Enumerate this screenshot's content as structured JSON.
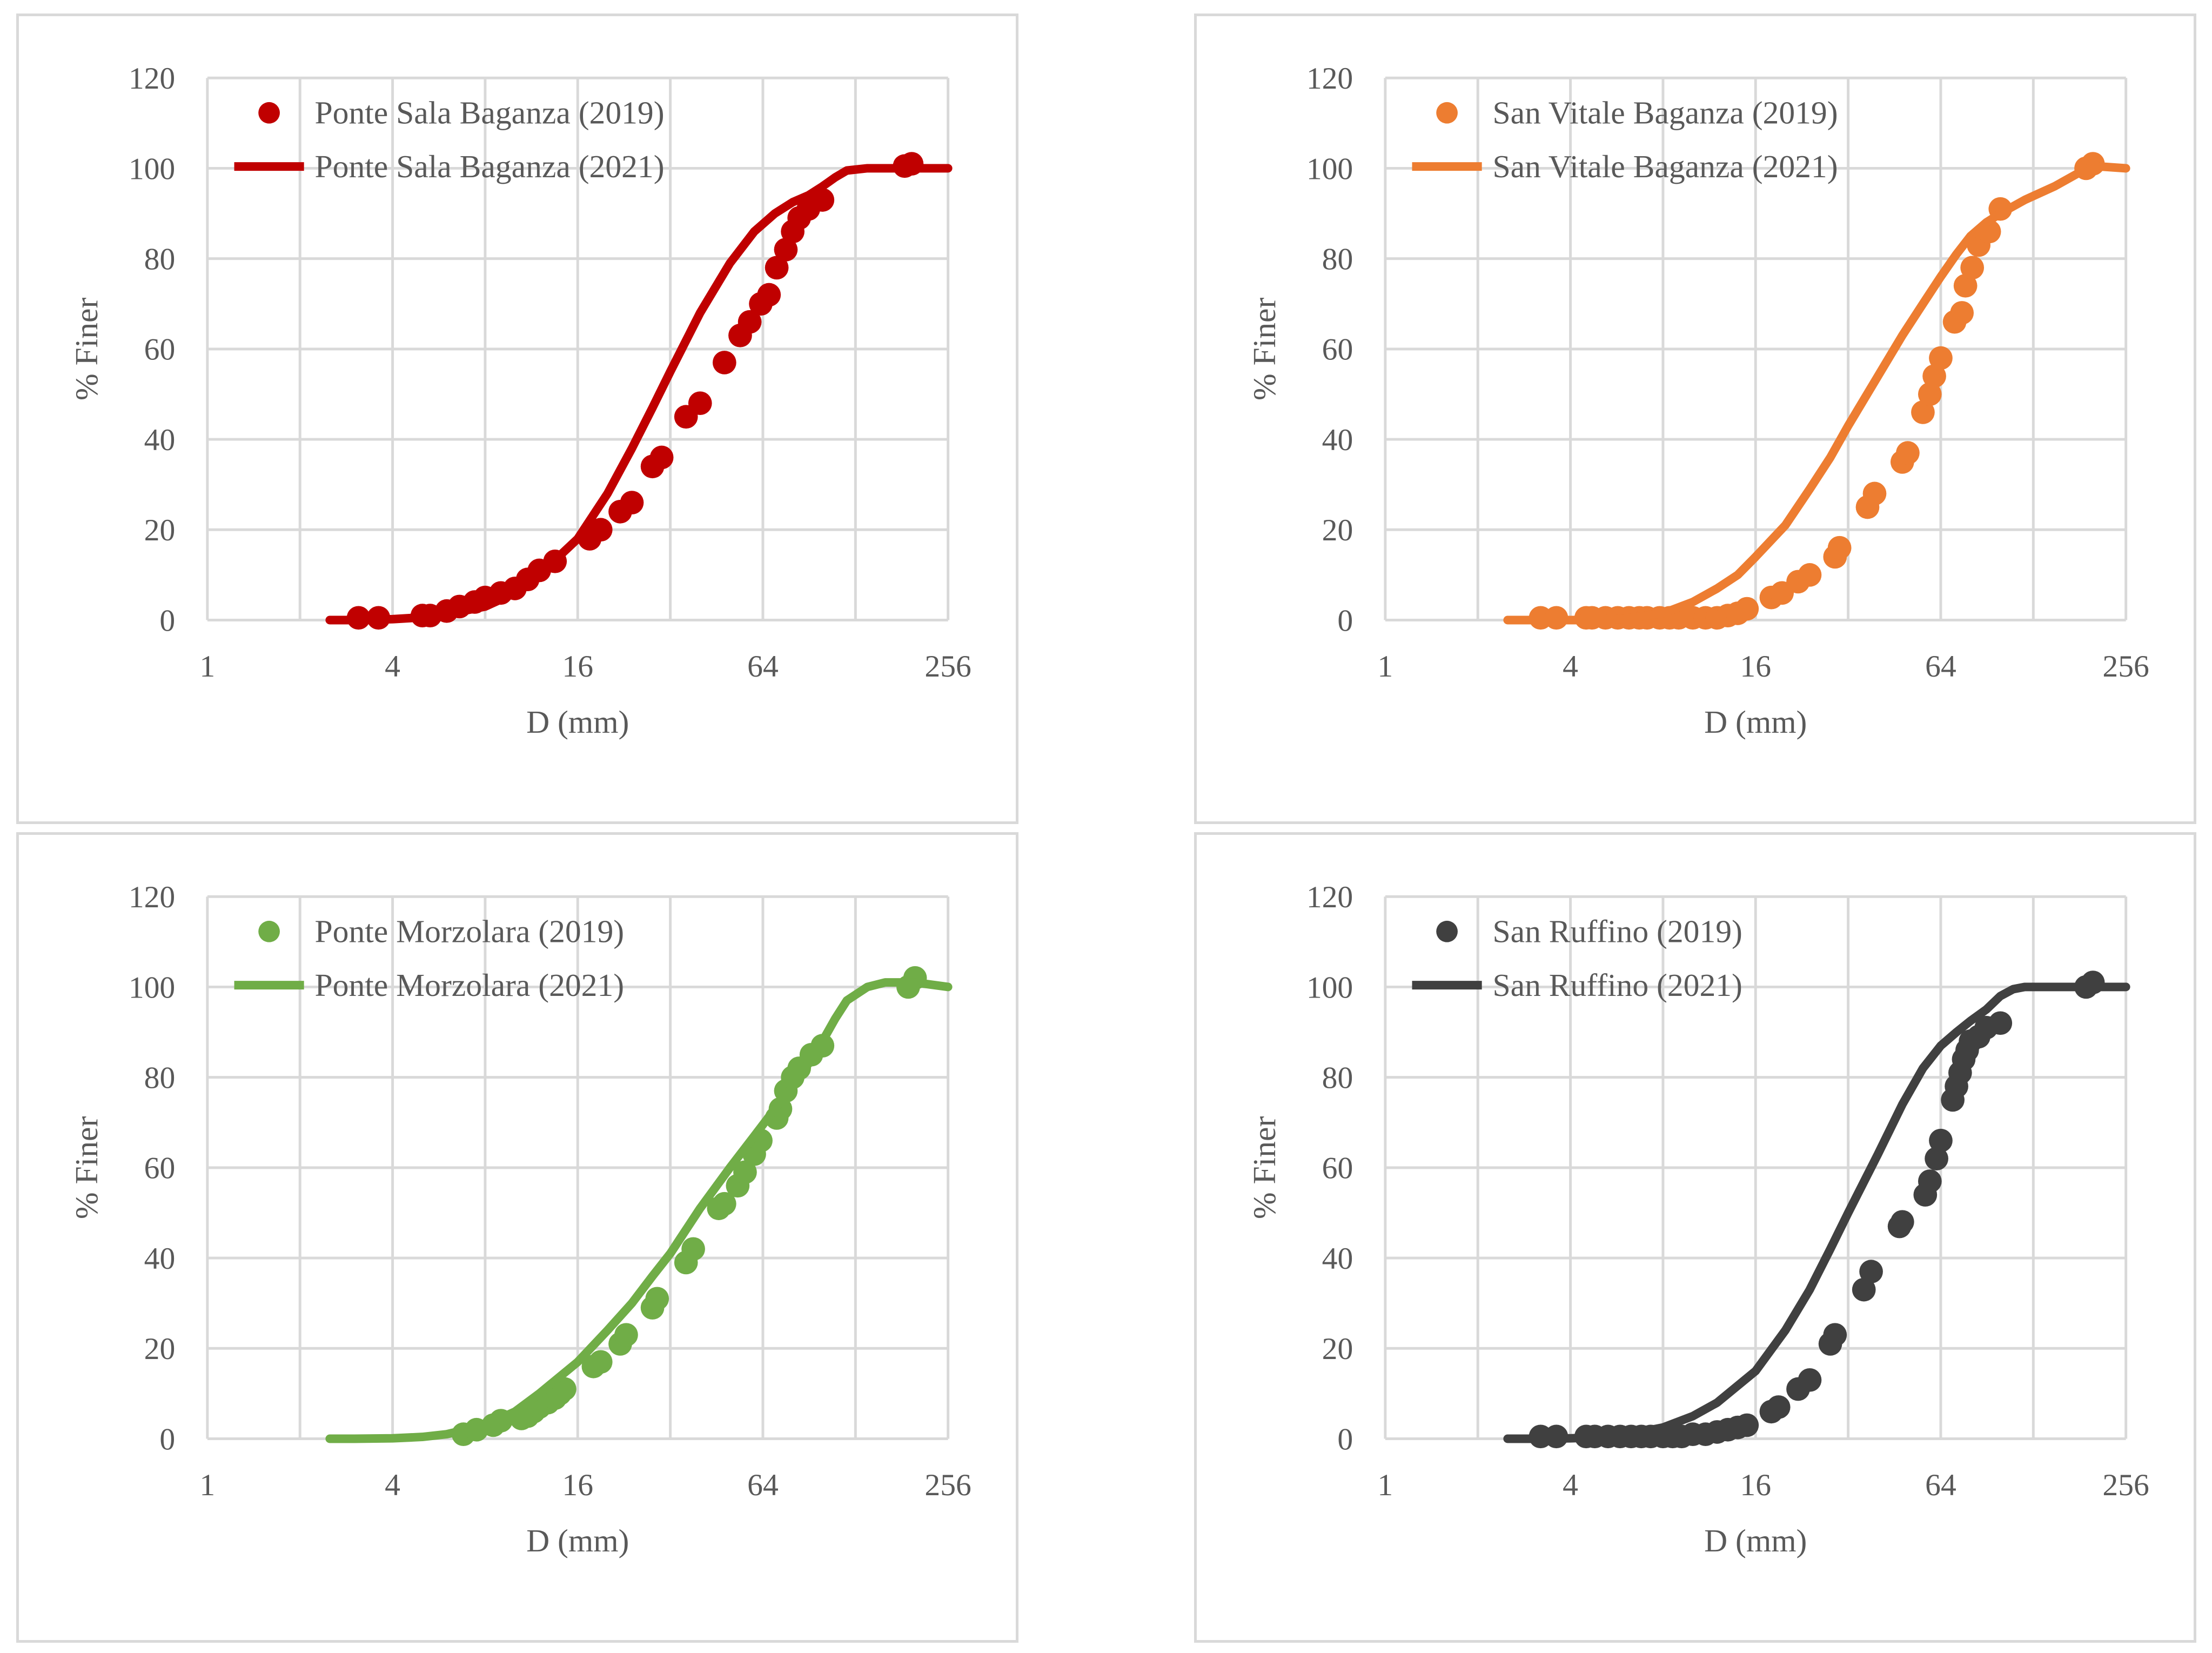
{
  "chart_data": [
    {
      "type": "scatter",
      "xscale": "log2",
      "xlabel": "D (mm)",
      "ylabel": "% Finer",
      "xticks": [
        1,
        4,
        16,
        64,
        256
      ],
      "yticks": [
        0,
        20,
        40,
        60,
        80,
        100,
        120
      ],
      "xlim": [
        1,
        256
      ],
      "ylim": [
        0,
        120
      ],
      "grid": true,
      "legend_position": "top-left",
      "color": "#c00000",
      "series": [
        {
          "name": "Ponte Sala Baganza (2019)",
          "kind": "points",
          "x": [
            3.1,
            3.6,
            5.0,
            5.3,
            6.0,
            6.6,
            7.4,
            8.0,
            9.0,
            10.0,
            11.0,
            12.0,
            13.5,
            17.5,
            19.0,
            22.0,
            24.0,
            28.0,
            30.0,
            36.0,
            40.0,
            48.0,
            54.0,
            58.0,
            63.0,
            67.0,
            71.0,
            76.0,
            80.0,
            84.0,
            90.0,
            100.0,
            185.0,
            195.0
          ],
          "y": [
            0.5,
            0.5,
            1.0,
            1.0,
            2.0,
            3.0,
            4.0,
            5.0,
            6.0,
            7.0,
            9.0,
            11.0,
            13.0,
            18.0,
            20.0,
            24.0,
            26.0,
            34.0,
            36.0,
            45.0,
            48.0,
            57.0,
            63.0,
            66.0,
            70.0,
            72.0,
            78.0,
            82.0,
            86.0,
            89.0,
            91.0,
            93.0,
            100.5,
            101.0
          ]
        },
        {
          "name": "Ponte Sala Baganza (2021)",
          "kind": "line",
          "x": [
            2.5,
            3,
            4,
            5,
            6,
            8,
            10,
            12,
            16,
            20,
            24,
            28,
            32,
            40,
            50,
            60,
            70,
            80,
            90,
            100,
            110,
            120,
            140,
            160,
            200,
            256
          ],
          "y": [
            0,
            0,
            0.2,
            0.6,
            1.3,
            3.0,
            6.0,
            10.0,
            18.0,
            28.0,
            38.0,
            47.0,
            55.0,
            68.0,
            79.0,
            86.0,
            90.0,
            92.5,
            94.0,
            96.0,
            98.0,
            99.5,
            100,
            100,
            100,
            100
          ]
        }
      ]
    },
    {
      "type": "scatter",
      "xscale": "log2",
      "xlabel": "D (mm)",
      "ylabel": "% Finer",
      "xticks": [
        1,
        4,
        16,
        64,
        256
      ],
      "yticks": [
        0,
        20,
        40,
        60,
        80,
        100,
        120
      ],
      "xlim": [
        1,
        256
      ],
      "ylim": [
        0,
        120
      ],
      "grid": true,
      "legend_position": "top-left",
      "color": "#ed7d31",
      "series": [
        {
          "name": "San Vitale Baganza (2019)",
          "kind": "points",
          "x": [
            3.2,
            3.6,
            4.5,
            4.7,
            5.2,
            5.7,
            6.2,
            6.7,
            7.1,
            7.8,
            8.4,
            9.0,
            10.0,
            11.0,
            12.0,
            13.0,
            14.0,
            15.0,
            18.0,
            19.5,
            22.0,
            24.0,
            29.0,
            30.0,
            37.0,
            39.0,
            48.0,
            50.0,
            56.0,
            59.0,
            61.0,
            64.0,
            71.0,
            75.0,
            77.0,
            81.0,
            85.0,
            92.0,
            100.0,
            190.0,
            200.0
          ],
          "y": [
            0.5,
            0.5,
            0.5,
            0.5,
            0.5,
            0.5,
            0.5,
            0.5,
            0.5,
            0.5,
            0.5,
            0.5,
            0.5,
            0.5,
            0.5,
            1.0,
            1.5,
            2.5,
            5.0,
            6.0,
            8.5,
            10.0,
            14.0,
            16.0,
            25.0,
            28.0,
            35.0,
            37.0,
            46.0,
            50.0,
            54.0,
            58.0,
            66.0,
            68.0,
            74.0,
            78.0,
            83.0,
            86.0,
            91.0,
            100.0,
            101.0
          ]
        },
        {
          "name": "San Vitale Baganza (2021)",
          "kind": "line",
          "x": [
            2.5,
            3,
            4,
            5,
            6,
            8,
            10,
            12,
            14,
            16,
            20,
            24,
            28,
            32,
            40,
            48,
            56,
            64,
            72,
            80,
            90,
            100,
            120,
            150,
            180,
            200,
            256
          ],
          "y": [
            0,
            0,
            0,
            0,
            0.3,
            1.5,
            4.0,
            7.0,
            10.0,
            14.0,
            21.0,
            29.0,
            36.0,
            43.0,
            54.0,
            63.0,
            70.0,
            76.0,
            81.0,
            85.0,
            88.0,
            90.0,
            93.0,
            96.0,
            99.0,
            100.5,
            100
          ]
        }
      ]
    },
    {
      "type": "scatter",
      "xscale": "log2",
      "xlabel": "D (mm)",
      "ylabel": "% Finer",
      "xticks": [
        1,
        4,
        16,
        64,
        256
      ],
      "yticks": [
        0,
        20,
        40,
        60,
        80,
        100,
        120
      ],
      "xlim": [
        1,
        256
      ],
      "ylim": [
        0,
        120
      ],
      "grid": true,
      "legend_position": "top-left",
      "color": "#70ad47",
      "series": [
        {
          "name": "Ponte Morzolara (2019)",
          "kind": "points",
          "x": [
            6.8,
            7.5,
            8.5,
            9.0,
            10.5,
            11.0,
            11.5,
            12.0,
            12.8,
            13.5,
            14.0,
            14.5,
            18.0,
            19.0,
            22.0,
            23.0,
            28.0,
            29.0,
            36.0,
            38.0,
            46.0,
            48.0,
            53.0,
            56.0,
            60.0,
            63.0,
            71.0,
            73.0,
            76.0,
            80.0,
            84.0,
            92.0,
            100.0,
            190.0,
            200.0
          ],
          "y": [
            1.0,
            2.0,
            3.0,
            4.0,
            4.5,
            5.0,
            6.0,
            7.0,
            8.0,
            9.0,
            10.0,
            11.0,
            16.0,
            17.0,
            21.0,
            23.0,
            29.0,
            31.0,
            39.0,
            42.0,
            51.0,
            52.0,
            56.0,
            59.0,
            63.0,
            66.0,
            71.0,
            73.0,
            77.0,
            80.0,
            82.0,
            85.0,
            87.0,
            100.0,
            102.0
          ]
        },
        {
          "name": "Ponte Morzolara (2021)",
          "kind": "line",
          "x": [
            2.5,
            3,
            4,
            5,
            6,
            8,
            10,
            12,
            16,
            20,
            24,
            28,
            32,
            40,
            50,
            60,
            70,
            80,
            90,
            100,
            110,
            120,
            140,
            160,
            200,
            256
          ],
          "y": [
            0,
            0,
            0.1,
            0.4,
            1.0,
            3.0,
            6.0,
            10.0,
            17.0,
            24.0,
            30.0,
            36.0,
            41.0,
            51.0,
            60.0,
            67.0,
            73.0,
            78.0,
            83.0,
            88.0,
            93.0,
            97.0,
            100.0,
            101.0,
            101.0,
            100.0
          ]
        }
      ]
    },
    {
      "type": "scatter",
      "xscale": "log2",
      "xlabel": "D (mm)",
      "ylabel": "% Finer",
      "xticks": [
        1,
        4,
        16,
        64,
        256
      ],
      "yticks": [
        0,
        20,
        40,
        60,
        80,
        100,
        120
      ],
      "xlim": [
        1,
        256
      ],
      "ylim": [
        0,
        120
      ],
      "grid": true,
      "legend_position": "top-left",
      "color": "#404040",
      "series": [
        {
          "name": "San Ruffino (2019)",
          "kind": "points",
          "x": [
            3.2,
            3.6,
            4.5,
            4.8,
            5.3,
            5.8,
            6.3,
            6.8,
            7.3,
            8.0,
            8.6,
            9.2,
            10.0,
            11.0,
            12.0,
            13.0,
            14.0,
            15.0,
            18.0,
            19.0,
            22.0,
            24.0,
            28.0,
            29.0,
            36.0,
            38.0,
            47.0,
            48.0,
            57.0,
            59.0,
            62.0,
            64.0,
            70.0,
            72.0,
            74.0,
            76.0,
            78.0,
            80.0,
            85.0,
            90.0,
            100.0,
            190.0,
            200.0
          ],
          "y": [
            0.5,
            0.5,
            0.5,
            0.5,
            0.5,
            0.5,
            0.5,
            0.5,
            0.5,
            0.5,
            0.5,
            0.5,
            1.0,
            1.0,
            1.5,
            2.0,
            2.5,
            3.0,
            6.0,
            7.0,
            11.0,
            13.0,
            21.0,
            23.0,
            33.0,
            37.0,
            47.0,
            48.0,
            54.0,
            57.0,
            62.0,
            66.0,
            75.0,
            78.0,
            81.0,
            84.0,
            86.0,
            88.0,
            89.0,
            91.0,
            92.0,
            100.0,
            101.0
          ]
        },
        {
          "name": "San Ruffino (2021)",
          "kind": "line",
          "x": [
            2.5,
            3,
            4,
            5,
            6,
            8,
            10,
            12,
            16,
            20,
            24,
            28,
            32,
            40,
            48,
            56,
            64,
            72,
            80,
            90,
            100,
            110,
            120,
            140,
            160,
            200,
            256
          ],
          "y": [
            0,
            0,
            0.1,
            0.3,
            0.8,
            2.5,
            5.0,
            8.0,
            15.0,
            24.0,
            33.0,
            42.0,
            50.0,
            63.0,
            74.0,
            82.0,
            87.0,
            90.0,
            92.5,
            95.0,
            98.0,
            99.5,
            100.0,
            100.0,
            100.0,
            100.0,
            100.0
          ]
        }
      ]
    }
  ]
}
